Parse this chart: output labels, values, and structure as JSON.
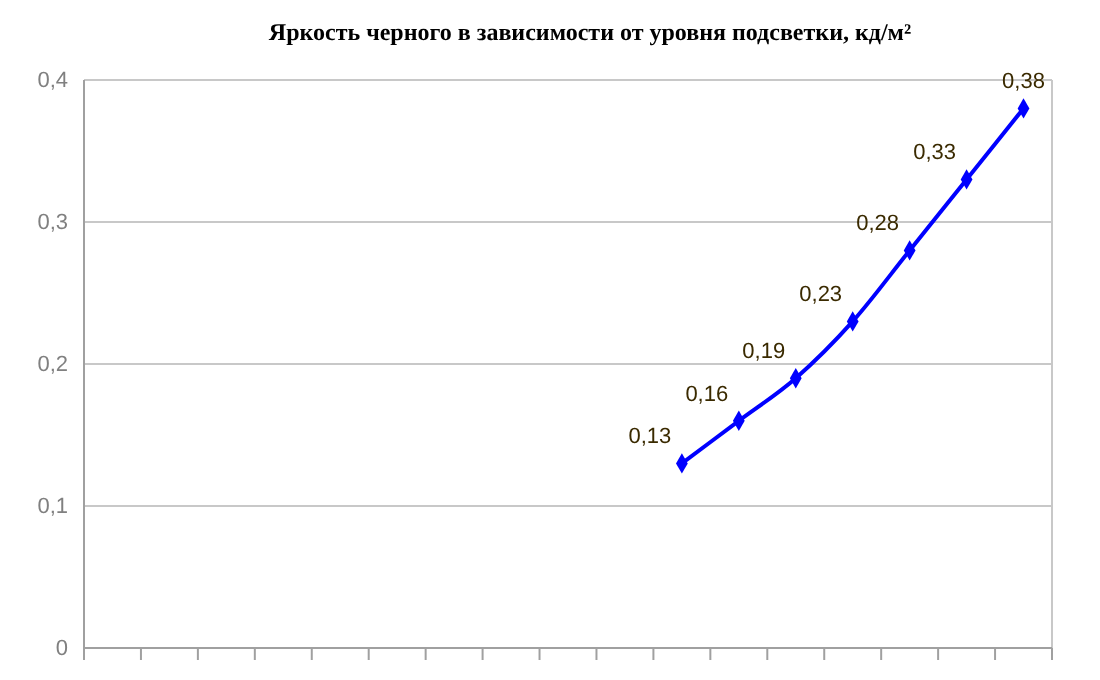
{
  "chart_data": {
    "type": "line",
    "title": "Яркость черного в зависимости от уровня подсветки, кд/м²",
    "categories": [
      null,
      null,
      null,
      null,
      null,
      null,
      null,
      null,
      null,
      null,
      null,
      null,
      null,
      null,
      null,
      null,
      null
    ],
    "series": [
      {
        "color": "#0000ff",
        "values": [
          null,
          null,
          null,
          null,
          null,
          null,
          null,
          null,
          null,
          null,
          0.13,
          0.16,
          0.19,
          0.23,
          0.28,
          0.33,
          0.38
        ],
        "value_labels": [
          null,
          null,
          null,
          null,
          null,
          null,
          null,
          null,
          null,
          null,
          "0,13",
          "0,16",
          "0,19",
          "0,23",
          "0,28",
          "0,33",
          "0,38"
        ]
      }
    ],
    "ylim": [
      0,
      0.4
    ],
    "yticks": [
      {
        "value": 0,
        "label": "0"
      },
      {
        "value": 0.1,
        "label": "0,1"
      },
      {
        "value": 0.2,
        "label": "0,2"
      },
      {
        "value": 0.3,
        "label": "0,3"
      },
      {
        "value": 0.4,
        "label": "0,4"
      }
    ],
    "grid": "y",
    "marker": "diamond",
    "line_style": "solid"
  }
}
